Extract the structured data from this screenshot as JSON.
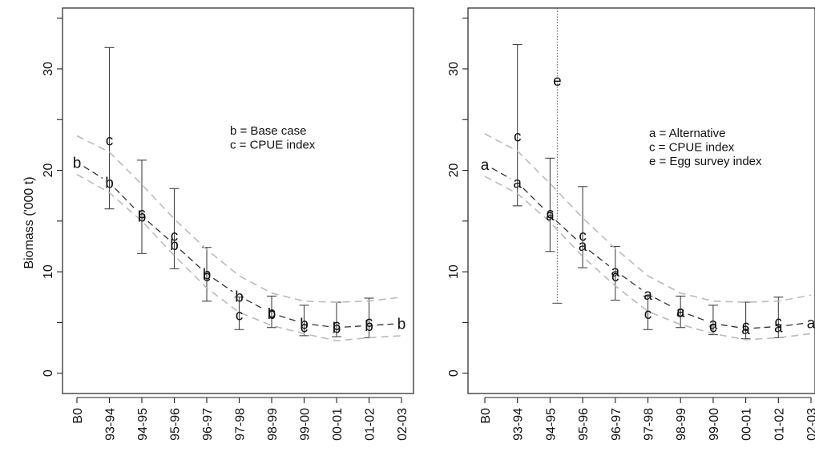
{
  "chart_data": [
    {
      "type": "line",
      "panel": "left",
      "title": "",
      "xlabel": "",
      "ylabel": "Biomass ('000 t)",
      "ylim": [
        -2,
        36
      ],
      "yticks": [
        0,
        10,
        20,
        30
      ],
      "categories": [
        "B0",
        "93-94",
        "94-95",
        "95-96",
        "96-97",
        "97-98",
        "98-99",
        "99-00",
        "00-01",
        "01-02",
        "02-03"
      ],
      "legend": {
        "placement": "top-right",
        "entries": [
          "b = Base case",
          "c = CPUE index"
        ]
      },
      "series": [
        {
          "key": "b",
          "plot_symbol": "b",
          "style": "dashed-dark",
          "values": [
            20.8,
            18.8,
            15.5,
            12.7,
            9.8,
            7.6,
            5.9,
            4.9,
            4.5,
            4.7,
            4.9
          ]
        },
        {
          "key": "c",
          "plot_symbol": "c",
          "style": "points",
          "values": [
            null,
            23.0,
            15.8,
            13.6,
            9.6,
            5.8,
            6.0,
            4.6,
            4.8,
            5.1,
            null
          ]
        },
        {
          "key": "upper",
          "style": "dashed-grey",
          "values": [
            23.4,
            21.8,
            18.6,
            15.2,
            12.2,
            9.6,
            7.9,
            7.1,
            7.0,
            7.1,
            7.5
          ]
        },
        {
          "key": "lower",
          "style": "dashed-grey",
          "values": [
            19.6,
            17.8,
            15.0,
            11.6,
            8.4,
            6.0,
            4.7,
            3.9,
            3.2,
            3.5,
            3.7
          ]
        }
      ],
      "error_bars": [
        {
          "category": "93-94",
          "low": 16.2,
          "high": 32.1
        },
        {
          "category": "94-95",
          "low": 11.8,
          "high": 21.0
        },
        {
          "category": "95-96",
          "low": 10.3,
          "high": 18.2
        },
        {
          "category": "96-97",
          "low": 7.1,
          "high": 12.4
        },
        {
          "category": "97-98",
          "low": 4.3,
          "high": 7.5
        },
        {
          "category": "98-99",
          "low": 4.5,
          "high": 7.6
        },
        {
          "category": "99-00",
          "low": 3.7,
          "high": 6.7
        },
        {
          "category": "00-01",
          "low": 3.6,
          "high": 7.0
        },
        {
          "category": "01-02",
          "low": 3.5,
          "high": 7.4
        }
      ]
    },
    {
      "type": "line",
      "panel": "right",
      "title": "",
      "xlabel": "",
      "ylabel": "",
      "ylim": [
        -2,
        36
      ],
      "yticks": [
        0,
        10,
        20,
        30
      ],
      "categories": [
        "B0",
        "93-94",
        "94-95",
        "95-96",
        "96-97",
        "97-98",
        "98-99",
        "99-00",
        "00-01",
        "01-02",
        "02-03"
      ],
      "legend": {
        "placement": "top-right",
        "entries": [
          "a = Alternative",
          "c = CPUE index",
          "e = Egg survey index"
        ]
      },
      "series": [
        {
          "key": "a",
          "plot_symbol": "a",
          "style": "dashed-dark",
          "values": [
            20.6,
            18.8,
            15.6,
            12.6,
            10.1,
            7.8,
            6.1,
            4.9,
            4.4,
            4.6,
            5.0
          ]
        },
        {
          "key": "c",
          "plot_symbol": "c",
          "style": "points",
          "values": [
            null,
            23.4,
            15.8,
            13.6,
            9.6,
            5.9,
            6.1,
            4.6,
            4.7,
            5.1,
            null
          ]
        },
        {
          "key": "upper",
          "style": "dashed-grey",
          "values": [
            23.6,
            21.9,
            18.7,
            15.3,
            12.3,
            9.6,
            7.9,
            7.1,
            7.0,
            7.1,
            7.7
          ]
        },
        {
          "key": "lower",
          "style": "dashed-grey",
          "values": [
            19.4,
            17.7,
            14.9,
            11.5,
            8.6,
            6.1,
            4.8,
            3.9,
            3.3,
            3.5,
            3.9
          ]
        }
      ],
      "egg_survey": {
        "plot_symbol": "e",
        "position_between": [
          "94-95",
          "95-96"
        ],
        "offset_fraction": 0.22,
        "value": 28.9,
        "low": 6.9,
        "high": 36
      },
      "error_bars": [
        {
          "category": "93-94",
          "low": 16.5,
          "high": 32.4
        },
        {
          "category": "94-95",
          "low": 12.0,
          "high": 21.2
        },
        {
          "category": "95-96",
          "low": 10.4,
          "high": 18.4
        },
        {
          "category": "96-97",
          "low": 7.2,
          "high": 12.5
        },
        {
          "category": "97-98",
          "low": 4.3,
          "high": 7.6
        },
        {
          "category": "98-99",
          "low": 4.5,
          "high": 7.6
        },
        {
          "category": "99-00",
          "low": 3.8,
          "high": 6.7
        },
        {
          "category": "00-01",
          "low": 3.4,
          "high": 7.0
        },
        {
          "category": "01-02",
          "low": 3.5,
          "high": 7.5
        }
      ]
    }
  ]
}
